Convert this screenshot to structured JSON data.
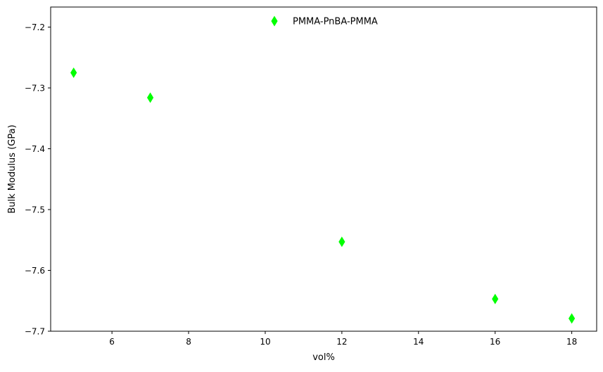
{
  "chart_data": {
    "type": "scatter",
    "xlabel": "vol%",
    "ylabel": "Bulk Modulus (GPa)",
    "xlim": [
      4.4,
      18.65
    ],
    "ylim": [
      -7.7,
      -7.167
    ],
    "xticks": [
      6,
      8,
      10,
      12,
      14,
      16,
      18
    ],
    "yticks": [
      -7.7,
      -7.6,
      -7.5,
      -7.4,
      -7.3,
      -7.2
    ],
    "xtick_labels": [
      "6",
      "8",
      "10",
      "12",
      "14",
      "16",
      "18"
    ],
    "ytick_labels": [
      "−7.7",
      "−7.6",
      "−7.5",
      "−7.4",
      "−7.3",
      "−7.2"
    ],
    "grid": false,
    "legend": {
      "placement": "top-center"
    },
    "series": [
      {
        "name": "PMMA-PnBA-PMMA",
        "marker": "thin-diamond",
        "color": "#00ff00",
        "x": [
          5,
          7,
          12,
          16,
          18
        ],
        "y": [
          -7.275,
          -7.316,
          -7.553,
          -7.647,
          -7.679
        ]
      }
    ]
  }
}
